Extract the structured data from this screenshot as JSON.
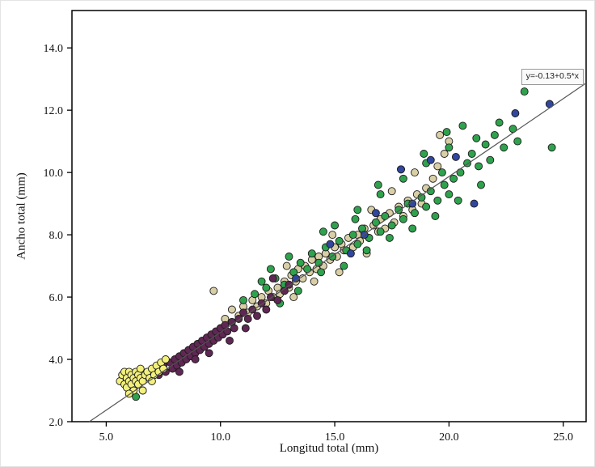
{
  "figure": {
    "background": "#ffffff"
  },
  "chart_data": {
    "type": "scatter",
    "title": "",
    "xlabel": "Longitud total (mm)",
    "ylabel": "Ancho total (mm)",
    "xlim": [
      3.5,
      26.0
    ],
    "ylim": [
      2.0,
      15.2
    ],
    "x_ticks": [
      5,
      10,
      15,
      20,
      25
    ],
    "x_tick_labels": [
      "5.0",
      "10.0",
      "15.0",
      "20.0",
      "25.0"
    ],
    "y_ticks": [
      2,
      4,
      6,
      8,
      10,
      12,
      14
    ],
    "y_tick_labels": [
      "2.0",
      "4.0",
      "6.0",
      "8.0",
      "10.0",
      "12.0",
      "14.0"
    ],
    "grid": false,
    "legend": "none",
    "axis_color": "#000000",
    "regression": {
      "label": "y=-0.13+0.5*x",
      "intercept": -0.13,
      "slope": 0.5,
      "color": "#555555"
    },
    "marker": {
      "radius": 4.5,
      "stroke": "#1c1c1c"
    },
    "series": [
      {
        "name": "group-tan",
        "color": "#d9cfa6",
        "points": [
          [
            9.7,
            6.2
          ],
          [
            10.2,
            5.3
          ],
          [
            10.5,
            5.6
          ],
          [
            10.8,
            5.4
          ],
          [
            11.0,
            5.7
          ],
          [
            11.2,
            5.5
          ],
          [
            11.4,
            5.9
          ],
          [
            11.6,
            5.7
          ],
          [
            11.8,
            6.0
          ],
          [
            12.0,
            5.8
          ],
          [
            12.1,
            6.2
          ],
          [
            12.3,
            6.0
          ],
          [
            12.5,
            6.3
          ],
          [
            12.6,
            6.1
          ],
          [
            12.8,
            6.5
          ],
          [
            13.0,
            6.3
          ],
          [
            13.1,
            6.7
          ],
          [
            13.3,
            6.5
          ],
          [
            13.4,
            6.9
          ],
          [
            13.6,
            6.6
          ],
          [
            13.7,
            7.0
          ],
          [
            13.9,
            6.8
          ],
          [
            14.0,
            7.2
          ],
          [
            14.2,
            6.9
          ],
          [
            14.3,
            7.3
          ],
          [
            14.5,
            7.0
          ],
          [
            14.6,
            7.4
          ],
          [
            14.8,
            7.2
          ],
          [
            15.0,
            7.6
          ],
          [
            15.1,
            7.3
          ],
          [
            15.3,
            7.7
          ],
          [
            15.4,
            7.5
          ],
          [
            15.6,
            7.9
          ],
          [
            15.8,
            7.6
          ],
          [
            16.0,
            8.0
          ],
          [
            16.1,
            7.8
          ],
          [
            16.3,
            8.2
          ],
          [
            16.5,
            7.9
          ],
          [
            16.7,
            8.3
          ],
          [
            16.9,
            8.1
          ],
          [
            17.0,
            8.5
          ],
          [
            17.2,
            8.2
          ],
          [
            17.4,
            8.7
          ],
          [
            17.6,
            8.4
          ],
          [
            17.8,
            8.9
          ],
          [
            18.0,
            8.6
          ],
          [
            18.2,
            9.1
          ],
          [
            18.4,
            8.8
          ],
          [
            18.6,
            9.3
          ],
          [
            18.8,
            9.0
          ],
          [
            19.0,
            9.5
          ],
          [
            19.3,
            9.8
          ],
          [
            19.5,
            10.2
          ],
          [
            19.8,
            10.6
          ],
          [
            20.0,
            11.0
          ],
          [
            13.2,
            6.0
          ],
          [
            14.1,
            6.5
          ],
          [
            15.2,
            6.8
          ],
          [
            16.4,
            7.4
          ],
          [
            12.9,
            7.0
          ],
          [
            14.9,
            8.0
          ],
          [
            16.6,
            8.8
          ],
          [
            17.5,
            9.4
          ],
          [
            18.5,
            10.0
          ],
          [
            19.6,
            11.2
          ]
        ]
      },
      {
        "name": "group-green",
        "color": "#2fa24d",
        "points": [
          [
            6.3,
            2.8
          ],
          [
            6.6,
            3.0
          ],
          [
            11.0,
            5.9
          ],
          [
            11.5,
            6.1
          ],
          [
            12.0,
            6.3
          ],
          [
            12.4,
            6.6
          ],
          [
            12.8,
            6.4
          ],
          [
            13.2,
            6.8
          ],
          [
            13.5,
            7.1
          ],
          [
            13.8,
            6.9
          ],
          [
            14.0,
            7.4
          ],
          [
            14.3,
            7.1
          ],
          [
            14.6,
            7.6
          ],
          [
            14.9,
            7.3
          ],
          [
            15.2,
            7.8
          ],
          [
            15.5,
            7.5
          ],
          [
            15.8,
            8.0
          ],
          [
            16.0,
            7.7
          ],
          [
            16.2,
            8.2
          ],
          [
            16.5,
            7.9
          ],
          [
            16.8,
            8.4
          ],
          [
            17.0,
            8.1
          ],
          [
            17.2,
            8.6
          ],
          [
            17.5,
            8.3
          ],
          [
            17.8,
            8.8
          ],
          [
            18.0,
            8.5
          ],
          [
            18.2,
            9.0
          ],
          [
            18.5,
            8.7
          ],
          [
            18.8,
            9.2
          ],
          [
            19.0,
            8.9
          ],
          [
            19.2,
            9.4
          ],
          [
            19.5,
            9.1
          ],
          [
            19.8,
            9.6
          ],
          [
            20.0,
            9.3
          ],
          [
            20.2,
            9.8
          ],
          [
            20.5,
            10.0
          ],
          [
            20.8,
            10.3
          ],
          [
            21.0,
            10.6
          ],
          [
            21.3,
            10.2
          ],
          [
            21.6,
            10.9
          ],
          [
            22.0,
            11.2
          ],
          [
            22.4,
            10.8
          ],
          [
            22.8,
            11.4
          ],
          [
            23.3,
            12.6
          ],
          [
            24.5,
            10.8
          ],
          [
            12.6,
            5.8
          ],
          [
            13.4,
            6.2
          ],
          [
            14.4,
            6.8
          ],
          [
            15.4,
            7.0
          ],
          [
            16.4,
            7.5
          ],
          [
            17.4,
            7.9
          ],
          [
            18.4,
            8.2
          ],
          [
            19.4,
            8.6
          ],
          [
            20.4,
            9.1
          ],
          [
            21.4,
            9.6
          ],
          [
            15.0,
            8.3
          ],
          [
            16.0,
            8.8
          ],
          [
            17.0,
            9.3
          ],
          [
            18.0,
            9.8
          ],
          [
            19.0,
            10.3
          ],
          [
            20.0,
            10.8
          ],
          [
            20.6,
            11.5
          ],
          [
            19.9,
            11.3
          ],
          [
            18.9,
            10.6
          ],
          [
            17.9,
            10.1
          ],
          [
            16.9,
            9.6
          ],
          [
            21.8,
            10.4
          ],
          [
            22.2,
            11.6
          ],
          [
            23.0,
            11.0
          ],
          [
            13.0,
            7.3
          ],
          [
            14.5,
            8.1
          ],
          [
            15.9,
            8.5
          ],
          [
            12.2,
            6.9
          ],
          [
            11.8,
            6.5
          ],
          [
            19.7,
            10.0
          ],
          [
            21.2,
            11.1
          ]
        ]
      },
      {
        "name": "group-purple",
        "color": "#5f2753",
        "points": [
          [
            6.9,
            3.4
          ],
          [
            7.1,
            3.6
          ],
          [
            7.3,
            3.5
          ],
          [
            7.5,
            3.8
          ],
          [
            7.6,
            3.6
          ],
          [
            7.8,
            3.9
          ],
          [
            7.9,
            3.7
          ],
          [
            8.0,
            4.0
          ],
          [
            8.1,
            3.8
          ],
          [
            8.2,
            4.1
          ],
          [
            8.3,
            3.9
          ],
          [
            8.4,
            4.2
          ],
          [
            8.5,
            4.0
          ],
          [
            8.6,
            4.3
          ],
          [
            8.7,
            4.1
          ],
          [
            8.8,
            4.4
          ],
          [
            8.9,
            4.2
          ],
          [
            9.0,
            4.5
          ],
          [
            9.1,
            4.3
          ],
          [
            9.2,
            4.6
          ],
          [
            9.3,
            4.4
          ],
          [
            9.4,
            4.7
          ],
          [
            9.5,
            4.5
          ],
          [
            9.6,
            4.8
          ],
          [
            9.7,
            4.6
          ],
          [
            9.8,
            4.9
          ],
          [
            9.9,
            4.7
          ],
          [
            10.0,
            5.0
          ],
          [
            10.1,
            4.8
          ],
          [
            10.2,
            5.1
          ],
          [
            10.3,
            4.9
          ],
          [
            10.5,
            5.2
          ],
          [
            10.6,
            5.0
          ],
          [
            10.8,
            5.3
          ],
          [
            11.0,
            5.5
          ],
          [
            11.2,
            5.3
          ],
          [
            11.4,
            5.6
          ],
          [
            11.6,
            5.4
          ],
          [
            11.8,
            5.8
          ],
          [
            12.0,
            5.6
          ],
          [
            12.2,
            6.0
          ],
          [
            12.5,
            5.9
          ],
          [
            12.8,
            6.2
          ],
          [
            13.0,
            6.4
          ],
          [
            8.2,
            3.6
          ],
          [
            8.9,
            4.0
          ],
          [
            9.5,
            4.2
          ],
          [
            10.4,
            4.6
          ],
          [
            11.1,
            5.0
          ],
          [
            12.3,
            6.6
          ]
        ]
      },
      {
        "name": "group-yellow",
        "color": "#f3f07c",
        "points": [
          [
            5.6,
            3.3
          ],
          [
            5.7,
            3.5
          ],
          [
            5.8,
            3.2
          ],
          [
            5.8,
            3.6
          ],
          [
            5.9,
            3.4
          ],
          [
            5.9,
            3.1
          ],
          [
            6.0,
            3.3
          ],
          [
            6.0,
            3.6
          ],
          [
            6.1,
            3.2
          ],
          [
            6.1,
            3.5
          ],
          [
            6.2,
            3.4
          ],
          [
            6.2,
            3.0
          ],
          [
            6.3,
            3.3
          ],
          [
            6.3,
            3.6
          ],
          [
            6.4,
            3.5
          ],
          [
            6.4,
            3.2
          ],
          [
            6.5,
            3.4
          ],
          [
            6.5,
            3.7
          ],
          [
            6.6,
            3.3
          ],
          [
            6.7,
            3.5
          ],
          [
            6.8,
            3.6
          ],
          [
            6.9,
            3.4
          ],
          [
            7.0,
            3.7
          ],
          [
            7.1,
            3.5
          ],
          [
            7.2,
            3.8
          ],
          [
            7.3,
            3.6
          ],
          [
            7.4,
            3.9
          ],
          [
            7.5,
            3.7
          ],
          [
            6.0,
            2.9
          ],
          [
            6.6,
            3.0
          ],
          [
            7.0,
            3.3
          ],
          [
            7.6,
            4.0
          ]
        ]
      },
      {
        "name": "group-blue",
        "color": "#31479e",
        "points": [
          [
            13.3,
            6.6
          ],
          [
            14.8,
            7.7
          ],
          [
            15.7,
            7.4
          ],
          [
            16.3,
            8.0
          ],
          [
            17.9,
            10.1
          ],
          [
            18.4,
            9.0
          ],
          [
            19.2,
            10.4
          ],
          [
            20.3,
            10.5
          ],
          [
            21.1,
            9.0
          ],
          [
            22.9,
            11.9
          ],
          [
            24.4,
            12.2
          ],
          [
            16.8,
            8.7
          ]
        ]
      }
    ]
  }
}
